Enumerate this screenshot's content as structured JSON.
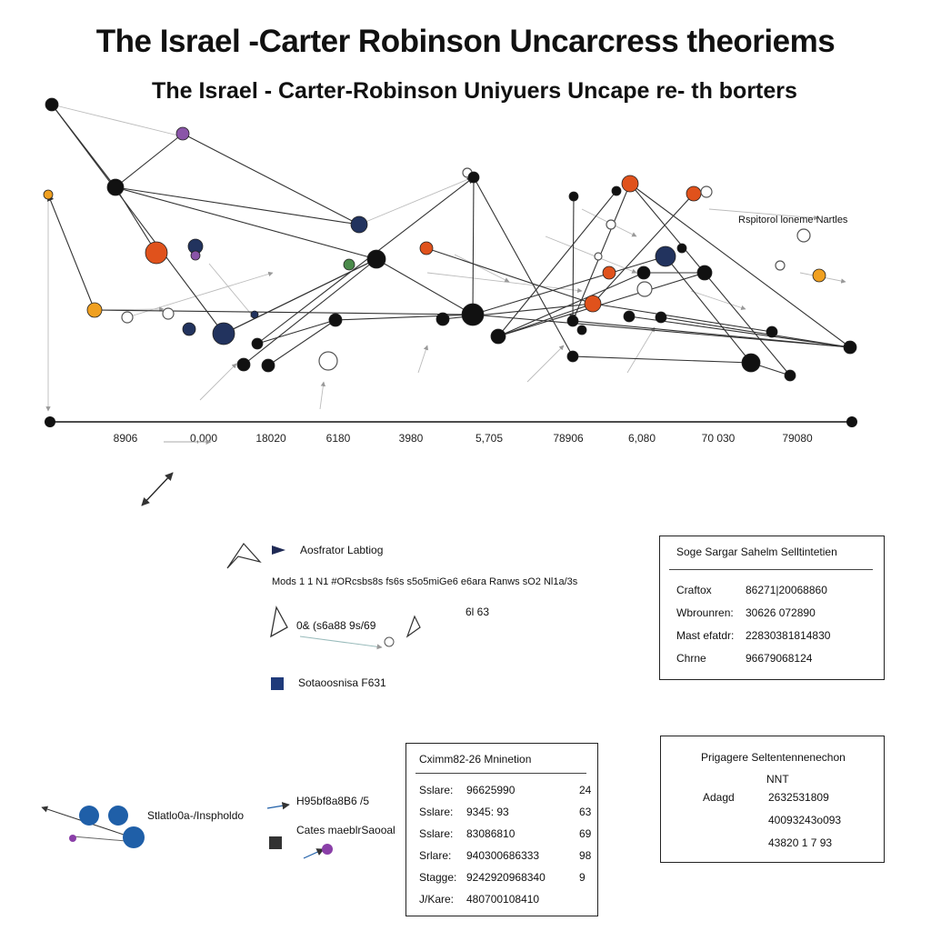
{
  "header": {
    "title": "The Israel -Carter Robinson Uncarcress theoriems",
    "subtitle": "The Israel - Carter-Robinson Uniyuers Uncape re- th borters"
  },
  "axis": {
    "ticks": [
      "8906",
      "0,000",
      "18020",
      "6180",
      "3980",
      "5,705",
      "78906",
      "6,080",
      "70 030",
      "79080"
    ]
  },
  "graph_label": "Rspitorol loneme Nartles",
  "legend_left": {
    "row1": "Aosfrator Labtiog",
    "row2": "Mods 1 1 N1 #ORcsbs8s fs6s s5o5miGe6 e6ara Ranws sO2 Nl1a/3s",
    "row2_extra": "6l 63",
    "row3": "0& (s6a88 9s/69",
    "row4": "Sotaoosnisa F631",
    "row4_color": "#1f3a7a"
  },
  "panel_right_top": {
    "title": "Soge Sargar Sahelm Selltintetien",
    "rows": [
      {
        "label": "Craftox",
        "value": "86271|20068860"
      },
      {
        "label": "Wbrounren:",
        "value": "30626 072890"
      },
      {
        "label": "Mast efatdr:",
        "value": "22830381814830"
      },
      {
        "label": "Chrne",
        "value": "96679068124"
      }
    ]
  },
  "panel_mid": {
    "title": "Cximm82-26 Mninetion",
    "rows": [
      {
        "label": "Sslare:",
        "value": "96625990",
        "extra": "24"
      },
      {
        "label": "Sslare:",
        "value": "9345: 93",
        "extra": "63"
      },
      {
        "label": "Sslare:",
        "value": "83086810",
        "extra": "69"
      },
      {
        "label": "Srlare:",
        "value": "940300686333",
        "extra": "98"
      },
      {
        "label": "Stagge:",
        "value": "9242920968340",
        "extra": "9"
      },
      {
        "label": "J/Kare:",
        "value": "480700108410",
        "extra": ""
      }
    ]
  },
  "panel_right_bottom": {
    "title": "Prigagere Seltentennenechon",
    "sub": "NNT",
    "rows": [
      {
        "label": "Adagd",
        "value": "2632531809"
      },
      {
        "label": "",
        "value": "40093243o093"
      },
      {
        "label": "",
        "value": "43820 1 7 93"
      }
    ]
  },
  "bottom_left": {
    "label1": "Stlatlo0a-/Inspholdo",
    "label2": "H95bf8a8B6 /5",
    "label3": "Cates maeblrSaooal",
    "color_blue": "#1f5fa8",
    "color_dark": "#333333",
    "color_purple": "#8a3fa8"
  },
  "colors": {
    "node_black": "#111111",
    "node_orange": "#e0521c",
    "node_amber": "#f0a020",
    "node_navy": "#22335e",
    "node_purple": "#8a55a8",
    "node_green": "#4a8a4a",
    "edge": "#333333"
  }
}
